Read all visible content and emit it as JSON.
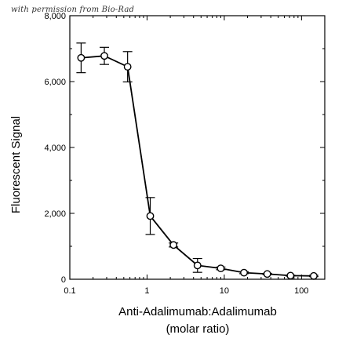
{
  "watermark": "with permission from Bio-Rad",
  "chart_data": {
    "type": "scatter",
    "title": "",
    "xlabel": "Anti-Adalimumab:Adalimumab",
    "xlabel_line2": "(molar ratio)",
    "ylabel": "Fluorescent Signal",
    "xscale": "log",
    "xlim": [
      0.1,
      200
    ],
    "ylim": [
      0,
      8000
    ],
    "xticks": [
      0.1,
      1,
      10,
      100
    ],
    "xtick_labels": [
      "0.1",
      "1",
      "10",
      "100"
    ],
    "yticks": [
      0,
      2000,
      4000,
      6000,
      8000
    ],
    "ytick_labels": [
      "0",
      "2,000",
      "4,000",
      "6,000",
      "8,000"
    ],
    "grid": false,
    "series": [
      {
        "x": [
          0.14,
          0.28,
          0.56,
          1.1,
          2.2,
          4.5,
          9,
          18,
          36,
          72,
          144
        ],
        "y": [
          6720,
          6780,
          6450,
          1920,
          1040,
          420,
          330,
          200,
          160,
          110,
          100
        ],
        "yerr": [
          450,
          260,
          460,
          560,
          60,
          210,
          40,
          30,
          20,
          15,
          20
        ],
        "marker": "circle",
        "line": true,
        "color": "#000000"
      }
    ]
  }
}
